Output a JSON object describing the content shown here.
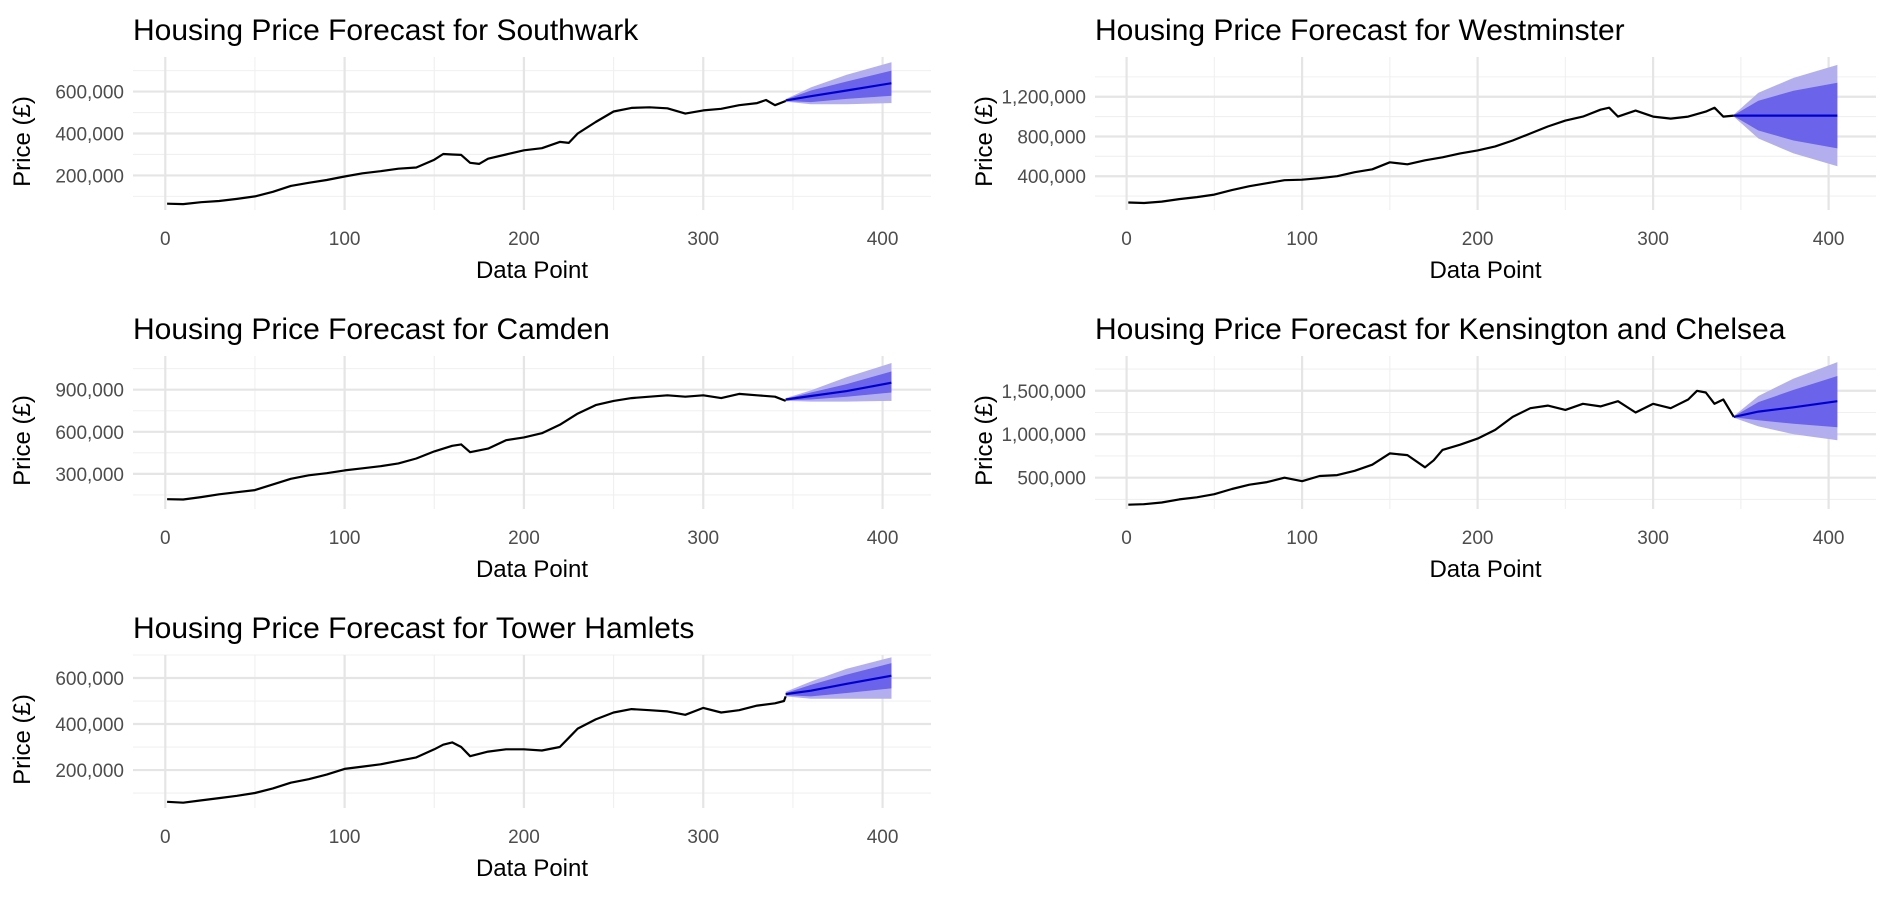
{
  "colors": {
    "history": "#000000",
    "forecast_line": "#0000cc",
    "band_80": "#6b63ea",
    "band_95": "#b3afef",
    "grid": "#e5e5e5"
  },
  "chart_data": [
    {
      "type": "line",
      "title": "Housing Price Forecast for Southwark",
      "xlabel": "Data Point",
      "ylabel": "Price (£)",
      "xlim": [
        -18,
        427
      ],
      "ylim": [
        35000,
        765000
      ],
      "xticks": [
        0,
        100,
        200,
        300,
        400
      ],
      "xtick_labels": [
        "0",
        "100",
        "200",
        "300",
        "400"
      ],
      "yticks": [
        200000,
        400000,
        600000
      ],
      "ytick_labels": [
        "200,000",
        "400,000",
        "600,000"
      ],
      "grid": true,
      "legend": "none",
      "history": {
        "x": [
          1,
          10,
          20,
          30,
          40,
          50,
          60,
          70,
          80,
          90,
          100,
          110,
          120,
          130,
          140,
          150,
          155,
          160,
          165,
          170,
          175,
          180,
          190,
          200,
          210,
          220,
          225,
          230,
          240,
          250,
          260,
          270,
          280,
          290,
          300,
          310,
          320,
          330,
          335,
          340,
          346
        ],
        "y": [
          65000,
          63000,
          72000,
          78000,
          88000,
          100000,
          122000,
          150000,
          165000,
          178000,
          195000,
          210000,
          220000,
          232000,
          238000,
          275000,
          302000,
          300000,
          298000,
          260000,
          255000,
          280000,
          300000,
          320000,
          330000,
          360000,
          355000,
          400000,
          455000,
          505000,
          522000,
          525000,
          520000,
          495000,
          510000,
          518000,
          535000,
          545000,
          560000,
          535000,
          555000
        ]
      },
      "forecast": {
        "x": [
          346,
          360,
          380,
          405
        ],
        "mean": [
          558000,
          578000,
          605000,
          640000
        ],
        "lo80": [
          555000,
          550000,
          565000,
          580000
        ],
        "hi80": [
          562000,
          605000,
          648000,
          700000
        ],
        "lo95": [
          552000,
          540000,
          540000,
          545000
        ],
        "hi95": [
          564000,
          620000,
          680000,
          740000
        ]
      }
    },
    {
      "type": "line",
      "title": "Housing Price Forecast for Westminster",
      "xlabel": "Data Point",
      "ylabel": "Price (£)",
      "xlim": [
        -18,
        427
      ],
      "ylim": [
        60000,
        1600000
      ],
      "xticks": [
        0,
        100,
        200,
        300,
        400
      ],
      "xtick_labels": [
        "0",
        "100",
        "200",
        "300",
        "400"
      ],
      "yticks": [
        400000,
        800000,
        1200000
      ],
      "ytick_labels": [
        "400,000",
        "800,000",
        "1,200,000"
      ],
      "grid": true,
      "legend": "none",
      "history": {
        "x": [
          1,
          10,
          20,
          30,
          40,
          50,
          60,
          70,
          80,
          90,
          100,
          110,
          120,
          130,
          140,
          150,
          160,
          170,
          180,
          190,
          200,
          210,
          220,
          230,
          240,
          250,
          260,
          270,
          275,
          280,
          290,
          300,
          310,
          320,
          330,
          335,
          340,
          346
        ],
        "y": [
          135000,
          130000,
          145000,
          170000,
          190000,
          215000,
          260000,
          300000,
          330000,
          360000,
          365000,
          380000,
          400000,
          440000,
          470000,
          540000,
          520000,
          560000,
          590000,
          630000,
          660000,
          700000,
          760000,
          830000,
          900000,
          960000,
          1000000,
          1070000,
          1090000,
          1000000,
          1060000,
          1000000,
          980000,
          1000000,
          1050000,
          1090000,
          1000000,
          1010000
        ]
      },
      "forecast": {
        "x": [
          346,
          360,
          380,
          405
        ],
        "mean": [
          1010000,
          1010000,
          1010000,
          1010000
        ],
        "lo80": [
          1005000,
          860000,
          760000,
          680000
        ],
        "hi80": [
          1015000,
          1160000,
          1260000,
          1340000
        ],
        "lo95": [
          1000000,
          780000,
          630000,
          500000
        ],
        "hi95": [
          1020000,
          1240000,
          1390000,
          1520000
        ]
      }
    },
    {
      "type": "line",
      "title": "Housing Price Forecast for Camden",
      "xlabel": "Data Point",
      "ylabel": "Price (£)",
      "xlim": [
        -18,
        427
      ],
      "ylim": [
        50000,
        1140000
      ],
      "xticks": [
        0,
        100,
        200,
        300,
        400
      ],
      "xtick_labels": [
        "0",
        "100",
        "200",
        "300",
        "400"
      ],
      "yticks": [
        300000,
        600000,
        900000
      ],
      "ytick_labels": [
        "300,000",
        "600,000",
        "900,000"
      ],
      "grid": true,
      "legend": "none",
      "history": {
        "x": [
          1,
          10,
          20,
          30,
          40,
          50,
          60,
          70,
          80,
          90,
          100,
          110,
          120,
          130,
          140,
          150,
          160,
          165,
          170,
          180,
          190,
          200,
          210,
          220,
          230,
          240,
          250,
          260,
          270,
          280,
          290,
          300,
          310,
          320,
          330,
          340,
          346
        ],
        "y": [
          120000,
          118000,
          135000,
          155000,
          170000,
          185000,
          225000,
          265000,
          290000,
          305000,
          325000,
          340000,
          355000,
          375000,
          410000,
          460000,
          500000,
          510000,
          455000,
          480000,
          540000,
          560000,
          590000,
          650000,
          730000,
          790000,
          820000,
          840000,
          850000,
          860000,
          850000,
          860000,
          840000,
          870000,
          860000,
          850000,
          820000
        ]
      },
      "forecast": {
        "x": [
          346,
          360,
          380,
          405
        ],
        "mean": [
          830000,
          855000,
          890000,
          950000
        ],
        "lo80": [
          825000,
          830000,
          850000,
          880000
        ],
        "hi80": [
          835000,
          880000,
          940000,
          1030000
        ],
        "lo95": [
          820000,
          815000,
          815000,
          820000
        ],
        "hi95": [
          840000,
          895000,
          990000,
          1090000
        ]
      }
    },
    {
      "type": "line",
      "title": "Housing Price Forecast for Kensington and Chelsea",
      "xlabel": "Data Point",
      "ylabel": "Price (£)",
      "xlim": [
        -18,
        427
      ],
      "ylim": [
        140000,
        1900000
      ],
      "xticks": [
        0,
        100,
        200,
        300,
        400
      ],
      "xtick_labels": [
        "0",
        "100",
        "200",
        "300",
        "400"
      ],
      "yticks": [
        500000,
        1000000,
        1500000
      ],
      "ytick_labels": [
        "500,000",
        "1,000,000",
        "1,500,000"
      ],
      "grid": true,
      "legend": "none",
      "history": {
        "x": [
          1,
          10,
          20,
          30,
          40,
          50,
          60,
          70,
          80,
          90,
          100,
          110,
          120,
          130,
          140,
          150,
          160,
          170,
          175,
          180,
          190,
          200,
          210,
          220,
          230,
          240,
          250,
          260,
          270,
          280,
          290,
          300,
          310,
          320,
          325,
          330,
          335,
          340,
          346
        ],
        "y": [
          190000,
          195000,
          215000,
          250000,
          275000,
          310000,
          370000,
          420000,
          450000,
          500000,
          460000,
          520000,
          530000,
          580000,
          650000,
          780000,
          760000,
          620000,
          700000,
          820000,
          880000,
          950000,
          1050000,
          1200000,
          1300000,
          1330000,
          1280000,
          1350000,
          1320000,
          1380000,
          1250000,
          1350000,
          1300000,
          1400000,
          1500000,
          1480000,
          1350000,
          1400000,
          1200000
        ]
      },
      "forecast": {
        "x": [
          346,
          360,
          380,
          405
        ],
        "mean": [
          1200000,
          1260000,
          1310000,
          1380000
        ],
        "lo80": [
          1195000,
          1160000,
          1120000,
          1080000
        ],
        "hi80": [
          1205000,
          1370000,
          1510000,
          1670000
        ],
        "lo95": [
          1190000,
          1090000,
          1000000,
          930000
        ],
        "hi95": [
          1210000,
          1440000,
          1640000,
          1830000
        ]
      }
    },
    {
      "type": "line",
      "title": "Housing Price Forecast for Tower Hamlets",
      "xlabel": "Data Point",
      "ylabel": "Price (£)",
      "xlim": [
        -18,
        427
      ],
      "ylim": [
        35000,
        700000
      ],
      "xticks": [
        0,
        100,
        200,
        300,
        400
      ],
      "xtick_labels": [
        "0",
        "100",
        "200",
        "300",
        "400"
      ],
      "yticks": [
        200000,
        400000,
        600000
      ],
      "ytick_labels": [
        "200,000",
        "400,000",
        "600,000"
      ],
      "grid": true,
      "legend": "none",
      "history": {
        "x": [
          1,
          10,
          20,
          30,
          40,
          50,
          60,
          70,
          80,
          90,
          100,
          110,
          120,
          130,
          140,
          150,
          155,
          160,
          165,
          170,
          180,
          190,
          200,
          210,
          220,
          225,
          230,
          240,
          250,
          260,
          270,
          280,
          290,
          300,
          310,
          320,
          330,
          340,
          345,
          346
        ],
        "y": [
          62000,
          58000,
          68000,
          78000,
          88000,
          100000,
          120000,
          145000,
          160000,
          180000,
          205000,
          215000,
          225000,
          240000,
          255000,
          290000,
          310000,
          320000,
          300000,
          260000,
          280000,
          290000,
          290000,
          285000,
          300000,
          340000,
          380000,
          420000,
          450000,
          465000,
          460000,
          455000,
          440000,
          470000,
          450000,
          460000,
          480000,
          490000,
          500000,
          520000
        ]
      },
      "forecast": {
        "x": [
          346,
          360,
          380,
          405
        ],
        "mean": [
          530000,
          545000,
          575000,
          610000
        ],
        "lo80": [
          525000,
          520000,
          535000,
          555000
        ],
        "hi80": [
          535000,
          570000,
          615000,
          665000
        ],
        "lo95": [
          520000,
          510000,
          510000,
          510000
        ],
        "hi95": [
          540000,
          585000,
          640000,
          690000
        ]
      }
    }
  ]
}
